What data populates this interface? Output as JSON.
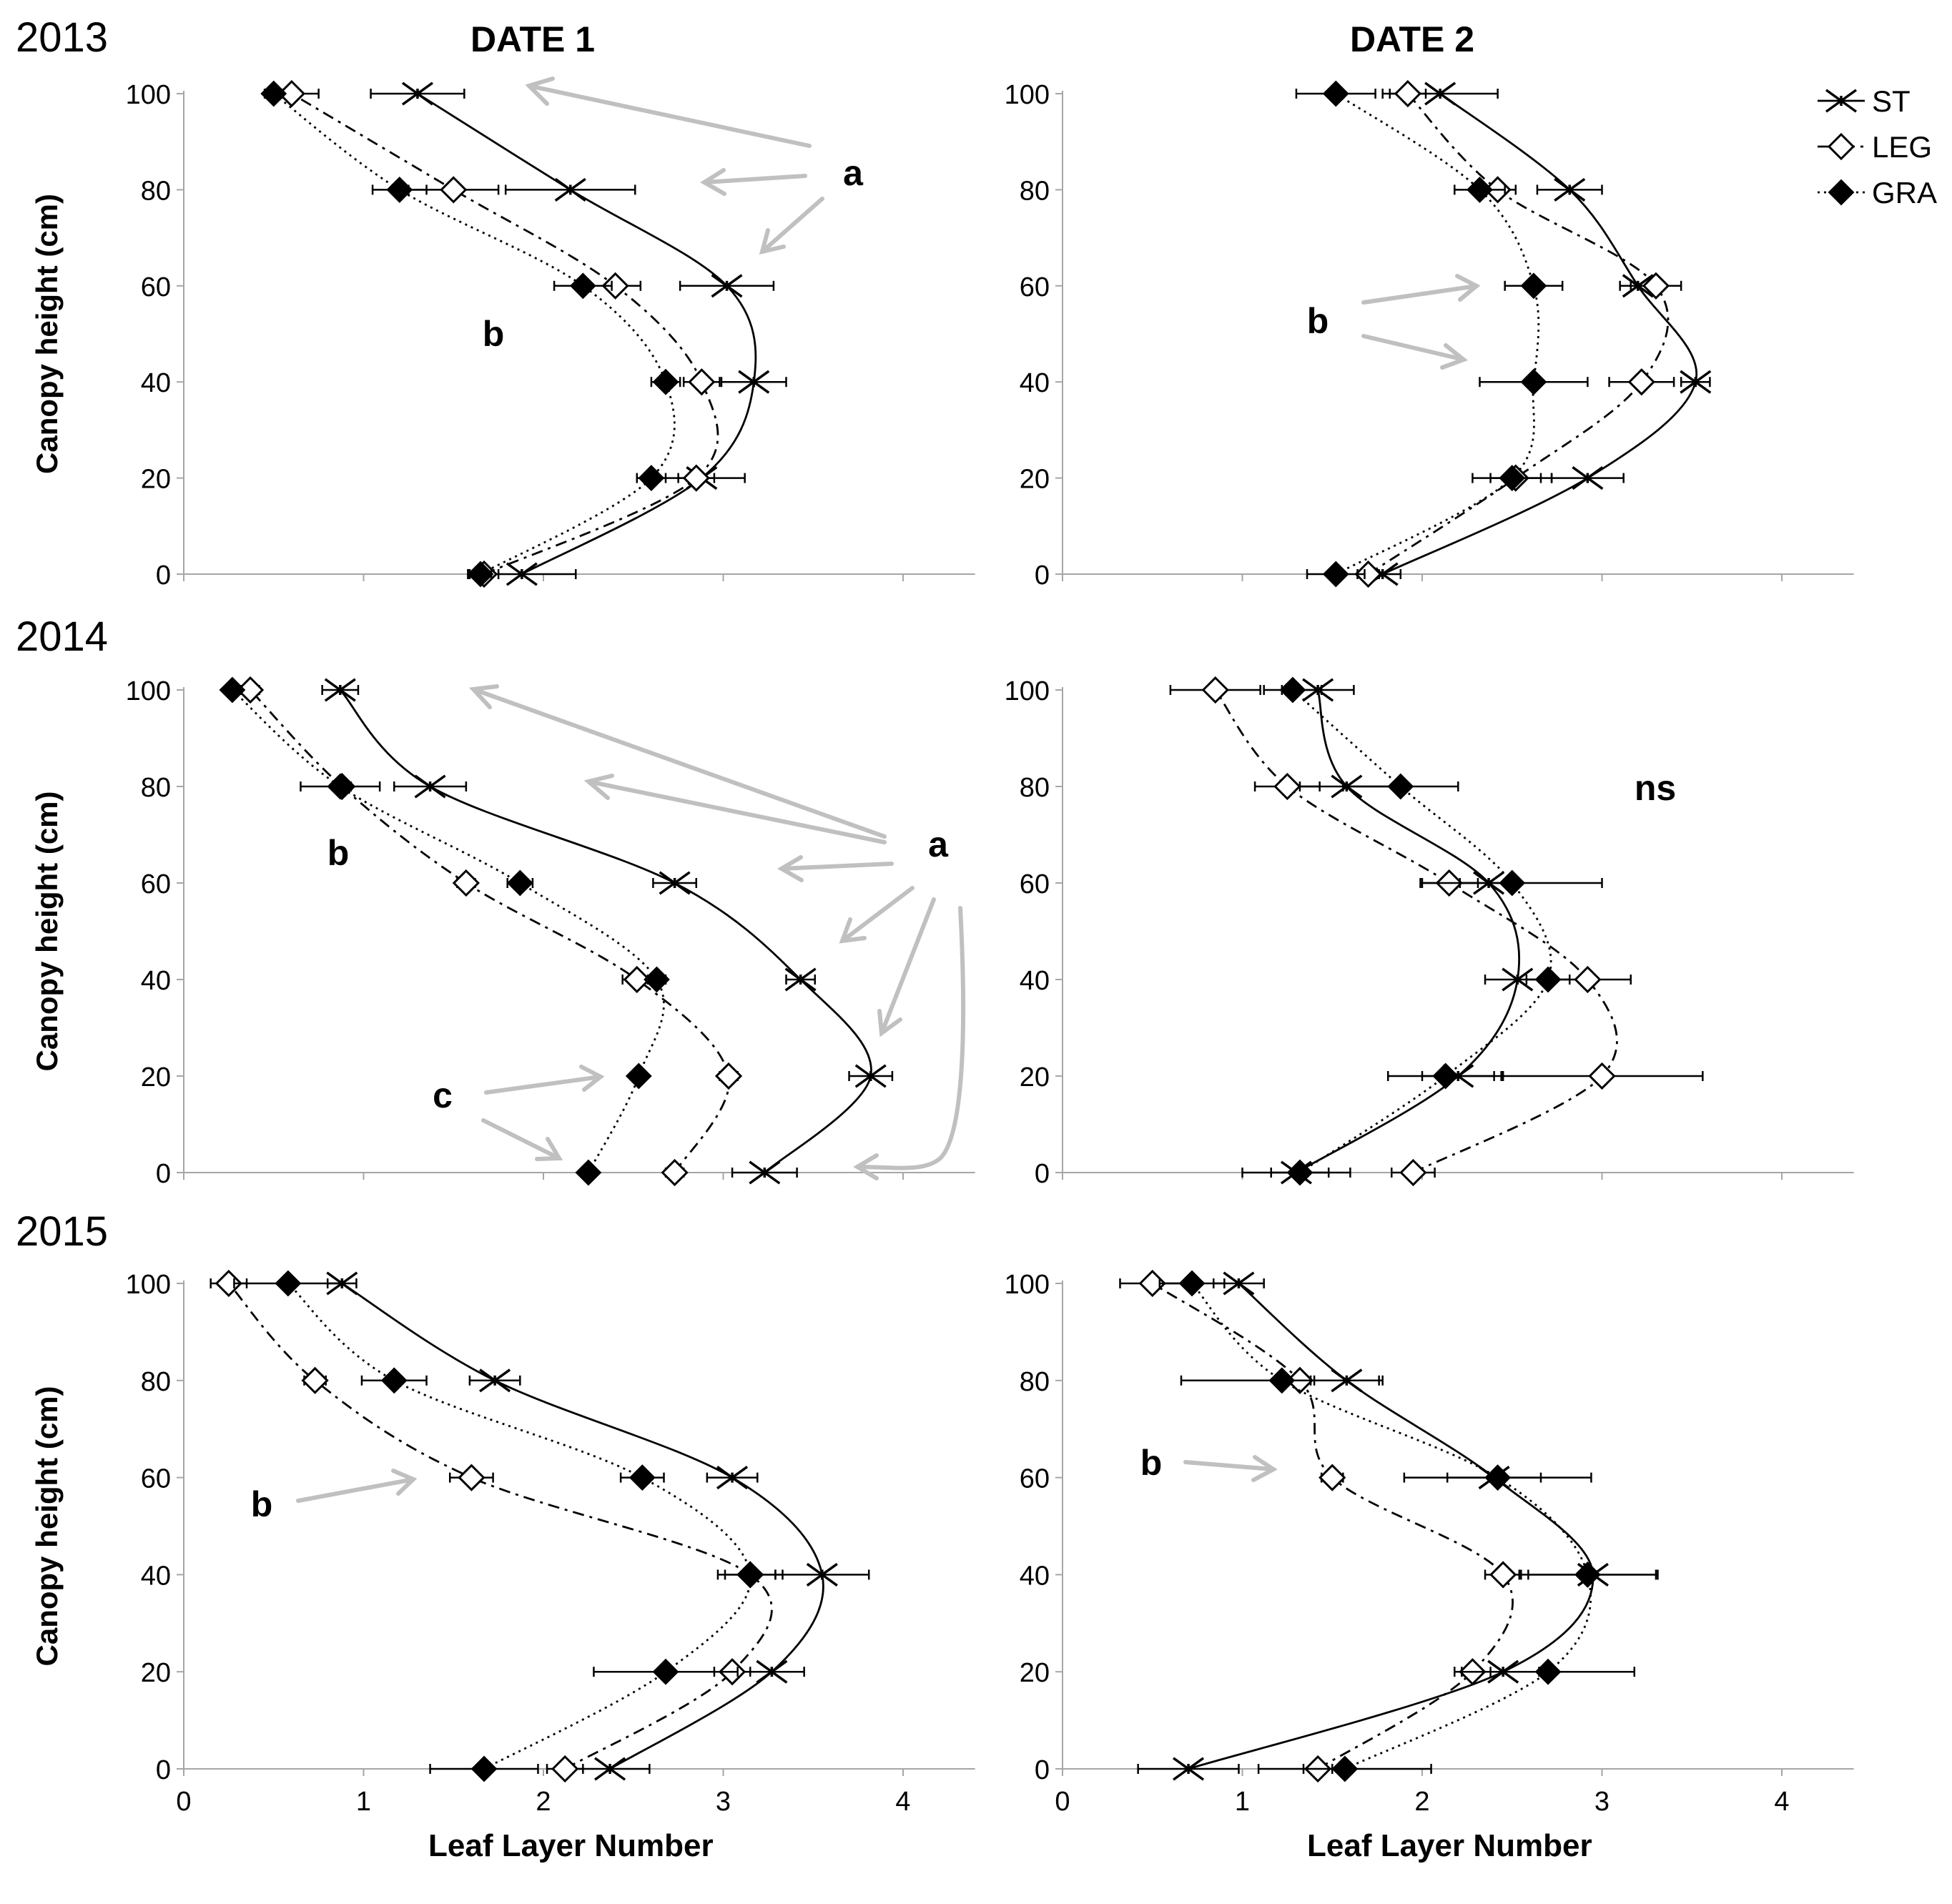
{
  "figure": {
    "column_titles": [
      "DATE 1",
      "DATE 2"
    ],
    "row_titles": [
      "2013",
      "2014",
      "2015"
    ],
    "legend": [
      {
        "key": "ST",
        "label": "ST",
        "marker": "star",
        "line": "solid"
      },
      {
        "key": "LEG",
        "label": "LEG",
        "marker": "diamond-open",
        "line": "dashdot"
      },
      {
        "key": "GRA",
        "label": "GRA",
        "marker": "diamond-filled",
        "line": "dotted"
      }
    ],
    "colors": {
      "ink": "#000000",
      "arrow": "#c0c0c0",
      "axis": "#a6a6a6"
    }
  },
  "chart_data": [
    {
      "type": "scatter",
      "year": "2013",
      "date": "DATE 1",
      "xlabel": "Leaf Layer Number",
      "ylabel": "Canopy height (cm)",
      "xlim": [
        0,
        4.4
      ],
      "ylim": [
        0,
        100
      ],
      "x_ticks": [
        0,
        1,
        2,
        3,
        4
      ],
      "y_ticks": [
        0,
        20,
        40,
        60,
        80,
        100
      ],
      "y": [
        0,
        20,
        40,
        60,
        80,
        100
      ],
      "series": [
        {
          "name": "ST",
          "x": [
            1.88,
            2.88,
            3.17,
            3.02,
            2.15,
            1.3
          ],
          "err": [
            0.3,
            0.24,
            0.18,
            0.26,
            0.36,
            0.26
          ]
        },
        {
          "name": "LEG",
          "x": [
            1.67,
            2.85,
            2.88,
            2.4,
            1.5,
            0.6
          ],
          "err": [
            0.08,
            0.1,
            0.1,
            0.14,
            0.25,
            0.15
          ]
        },
        {
          "name": "GRA",
          "x": [
            1.65,
            2.6,
            2.68,
            2.22,
            1.2,
            0.5
          ],
          "err": [
            0.06,
            0.08,
            0.08,
            0.16,
            0.15,
            0.05
          ]
        }
      ],
      "annotations": [
        {
          "text": "a",
          "target": "ST 100–60 cm"
        },
        {
          "text": "b",
          "target": "LEG, GRA"
        }
      ]
    },
    {
      "type": "scatter",
      "year": "2013",
      "date": "DATE 2",
      "xlabel": "Leaf Layer Number",
      "ylabel": "",
      "xlim": [
        0,
        4.4
      ],
      "ylim": [
        0,
        100
      ],
      "x_ticks": [
        0,
        1,
        2,
        3,
        4
      ],
      "y_ticks": [
        0,
        20,
        40,
        60,
        80,
        100
      ],
      "y": [
        0,
        20,
        40,
        60,
        80,
        100
      ],
      "series": [
        {
          "name": "ST",
          "x": [
            1.78,
            2.92,
            3.52,
            3.2,
            2.82,
            2.1
          ],
          "err": [
            0.1,
            0.2,
            0.08,
            0.1,
            0.18,
            0.32
          ]
        },
        {
          "name": "LEG",
          "x": [
            1.7,
            2.52,
            3.22,
            3.3,
            2.42,
            1.92
          ],
          "err": [
            0.06,
            0.14,
            0.18,
            0.14,
            0.1,
            0.1
          ]
        },
        {
          "name": "GRA",
          "x": [
            1.52,
            2.5,
            2.62,
            2.62,
            2.32,
            1.52
          ],
          "err": [
            0.16,
            0.22,
            0.3,
            0.16,
            0.14,
            0.22
          ]
        }
      ],
      "annotations": [
        {
          "text": "b",
          "target": "GRA 40–60 cm"
        }
      ]
    },
    {
      "type": "scatter",
      "year": "2014",
      "date": "DATE 1",
      "xlabel": "Leaf Layer Number",
      "ylabel": "Canopy height (cm)",
      "xlim": [
        0,
        4.4
      ],
      "ylim": [
        0,
        100
      ],
      "x_ticks": [
        0,
        1,
        2,
        3,
        4
      ],
      "y_ticks": [
        0,
        20,
        40,
        60,
        80,
        100
      ],
      "y": [
        0,
        20,
        40,
        60,
        80,
        100
      ],
      "series": [
        {
          "name": "ST",
          "x": [
            3.23,
            3.82,
            3.43,
            2.73,
            1.37,
            0.87
          ],
          "err": [
            0.18,
            0.12,
            0.08,
            0.12,
            0.2,
            0.1
          ]
        },
        {
          "name": "LEG",
          "x": [
            2.73,
            3.03,
            2.52,
            1.57,
            0.88,
            0.37
          ],
          "err": [
            0.05,
            0.05,
            0.08,
            0.05,
            0.05,
            0.05
          ]
        },
        {
          "name": "GRA",
          "x": [
            2.25,
            2.53,
            2.63,
            1.87,
            0.87,
            0.27
          ],
          "err": [
            0.03,
            0.03,
            0.05,
            0.07,
            0.22,
            0.03
          ]
        }
      ],
      "annotations": [
        {
          "text": "a",
          "target": "ST"
        },
        {
          "text": "b",
          "target": "LEG, GRA 60–100 cm"
        },
        {
          "text": "c",
          "target": "GRA 0–20 cm"
        }
      ]
    },
    {
      "type": "scatter",
      "year": "2014",
      "date": "DATE 2",
      "xlabel": "Leaf Layer Number",
      "ylabel": "",
      "xlim": [
        0,
        4.4
      ],
      "ylim": [
        0,
        100
      ],
      "x_ticks": [
        0,
        1,
        2,
        3,
        4
      ],
      "y_ticks": [
        0,
        20,
        40,
        60,
        80,
        100
      ],
      "y": [
        0,
        20,
        40,
        60,
        80,
        100
      ],
      "series": [
        {
          "name": "ST",
          "x": [
            1.3,
            2.2,
            2.53,
            2.37,
            1.58,
            1.42
          ],
          "err": [
            0.3,
            0.2,
            0.18,
            0.16,
            0.26,
            0.2
          ]
        },
        {
          "name": "LEG",
          "x": [
            1.95,
            3.0,
            2.92,
            2.15,
            1.25,
            0.85
          ],
          "err": [
            0.12,
            0.56,
            0.24,
            0.16,
            0.18,
            0.25
          ]
        },
        {
          "name": "GRA",
          "x": [
            1.32,
            2.13,
            2.7,
            2.5,
            1.88,
            1.28
          ],
          "err": [
            0.16,
            0.32,
            0.12,
            0.5,
            0.32,
            0.16
          ]
        }
      ],
      "annotations": [
        {
          "text": "ns",
          "target": "all"
        }
      ]
    },
    {
      "type": "scatter",
      "year": "2015",
      "date": "DATE 1",
      "xlabel": "Leaf Layer Number",
      "ylabel": "Canopy height (cm)",
      "xlim": [
        0,
        4.4
      ],
      "ylim": [
        0,
        100
      ],
      "x_ticks": [
        0,
        1,
        2,
        3,
        4
      ],
      "y_ticks": [
        0,
        20,
        40,
        60,
        80,
        100
      ],
      "y": [
        0,
        20,
        40,
        60,
        80,
        100
      ],
      "series": [
        {
          "name": "ST",
          "x": [
            2.37,
            3.27,
            3.55,
            3.05,
            1.73,
            0.88
          ],
          "err": [
            0.22,
            0.18,
            0.26,
            0.14,
            0.14,
            0.08
          ]
        },
        {
          "name": "LEG",
          "x": [
            2.12,
            3.05,
            3.15,
            1.6,
            0.73,
            0.25
          ],
          "err": [
            0.1,
            0.1,
            0.14,
            0.12,
            0.06,
            0.1
          ]
        },
        {
          "name": "GRA",
          "x": [
            1.67,
            2.68,
            3.15,
            2.55,
            1.17,
            0.58
          ],
          "err": [
            0.3,
            0.4,
            0.18,
            0.12,
            0.18,
            0.3
          ]
        }
      ],
      "annotations": [
        {
          "text": "b",
          "target": "LEG"
        }
      ]
    },
    {
      "type": "scatter",
      "year": "2015",
      "date": "DATE 2",
      "xlabel": "Leaf Layer Number",
      "ylabel": "",
      "xlim": [
        0,
        4.4
      ],
      "ylim": [
        0,
        100
      ],
      "x_ticks": [
        0,
        1,
        2,
        3,
        4
      ],
      "y_ticks": [
        0,
        20,
        40,
        60,
        80,
        100
      ],
      "y": [
        0,
        20,
        40,
        60,
        80,
        100
      ],
      "series": [
        {
          "name": "ST",
          "x": [
            0.7,
            2.45,
            2.95,
            2.4,
            1.58,
            0.98
          ],
          "err": [
            0.28,
            0.2,
            0.36,
            0.26,
            0.18,
            0.14
          ]
        },
        {
          "name": "LEG",
          "x": [
            1.42,
            2.28,
            2.45,
            1.5,
            1.32,
            0.5
          ],
          "err": [
            0.08,
            0.1,
            0.1,
            0.06,
            0.06,
            0.18
          ]
        },
        {
          "name": "GRA",
          "x": [
            1.57,
            2.7,
            2.92,
            2.42,
            1.22,
            0.72
          ],
          "err": [
            0.48,
            0.48,
            0.38,
            0.52,
            0.56,
            0.18
          ]
        }
      ],
      "annotations": [
        {
          "text": "b",
          "target": "LEG 60 cm"
        }
      ]
    }
  ]
}
